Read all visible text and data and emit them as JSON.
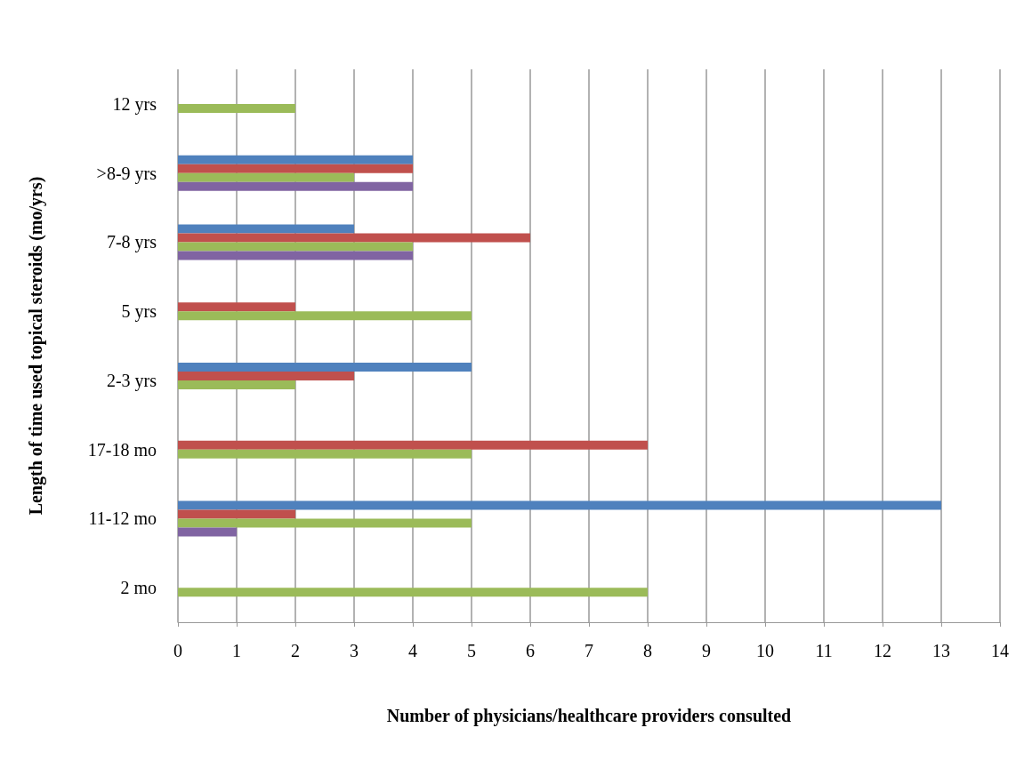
{
  "chart_data": {
    "type": "bar",
    "orientation": "horizontal",
    "xlabel": "Number of physicians/healthcare providers consulted",
    "ylabel": "Length of time used topical steroids (mo/yrs)",
    "categories": [
      "12 yrs",
      ">8-9 yrs",
      "7-8 yrs",
      "5 yrs",
      "2-3 yrs",
      "17-18 mo",
      "11-12 mo",
      "2 mo"
    ],
    "series": [
      {
        "color": "#4f81bd",
        "values": [
          null,
          4,
          3,
          null,
          5,
          null,
          13,
          null
        ]
      },
      {
        "color": "#c0504d",
        "values": [
          null,
          4,
          6,
          2,
          3,
          8,
          2,
          null
        ]
      },
      {
        "color": "#9bbb59",
        "values": [
          2,
          3,
          4,
          5,
          2,
          5,
          5,
          8
        ]
      },
      {
        "color": "#8064a2",
        "values": [
          null,
          4,
          4,
          null,
          null,
          null,
          1,
          null
        ]
      }
    ],
    "xlim": [
      0,
      14
    ],
    "xticks": [
      0,
      1,
      2,
      3,
      4,
      5,
      6,
      7,
      8,
      9,
      10,
      11,
      12,
      13,
      14
    ],
    "grid": "x"
  }
}
